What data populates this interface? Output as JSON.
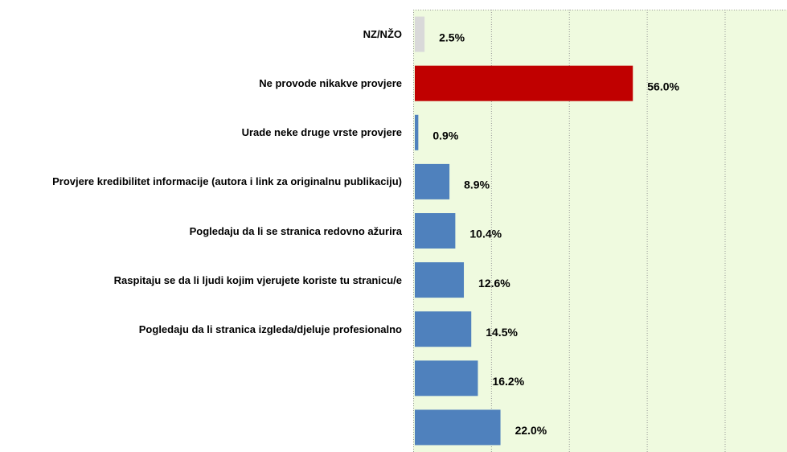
{
  "chart_data": {
    "type": "bar",
    "orientation": "horizontal",
    "categories": [
      "NZ/NŽO",
      "Ne provode nikakve provjere",
      "Urade neke druge vrste provjere",
      "Provjere kredibilitet informacije (autora i link za originalnu publikaciju)",
      "Pogledaju da li se stranica redovno ažurira",
      "Raspitaju se da li ljudi kojim vjerujete koriste tu stranicu/e",
      "Pogledaju da li stranica izgleda/djeluje profesionalno",
      null,
      null
    ],
    "values": [
      2.5,
      56.0,
      0.9,
      8.9,
      10.4,
      12.6,
      14.5,
      16.2,
      22.0
    ],
    "value_labels": [
      "2.5%",
      "56.0%",
      "0.9%",
      "8.9%",
      "10.4%",
      "12.6%",
      "14.5%",
      "16.2%",
      "22.0%"
    ],
    "colors": [
      "#d9d9d9",
      "#c00000",
      "#4f81bd",
      "#4f81bd",
      "#4f81bd",
      "#4f81bd",
      "#4f81bd",
      "#4f81bd",
      "#4f81bd"
    ],
    "xlim": [
      0,
      96
    ],
    "xticks": [
      0,
      20,
      40,
      60,
      80
    ],
    "grid": true
  }
}
